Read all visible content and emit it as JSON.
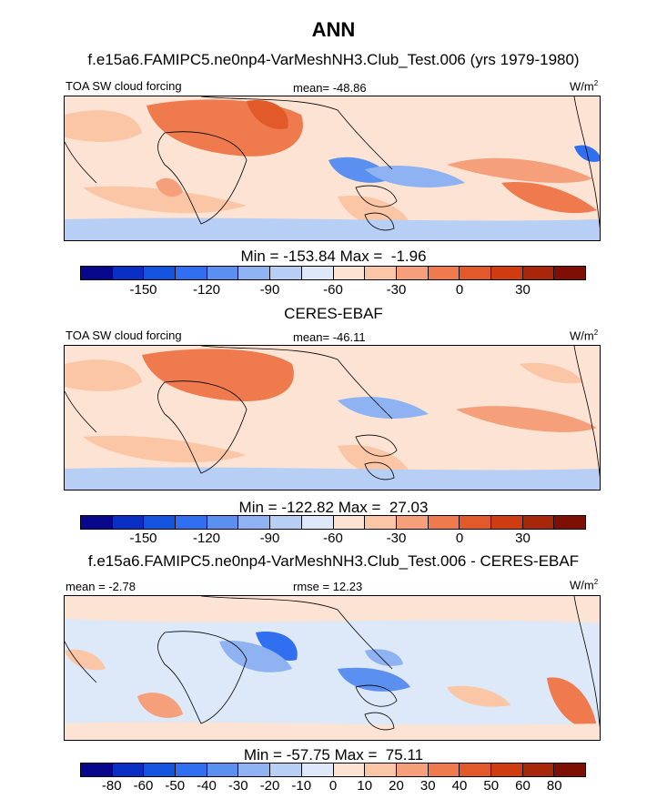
{
  "page_title": "ANN",
  "panels": [
    {
      "subtitle": "f.e15a6.FAMIPC5.ne0np4-VarMeshNH3.Club_Test.006 (yrs 1979-1980)",
      "left_label": "TOA SW cloud forcing",
      "center_label": "mean= -48.86",
      "unit_base": "W/m",
      "unit_sup": "2",
      "minmax": "Min = -153.84 Max =  -1.96",
      "ticks": [
        "-150",
        "-120",
        "-90",
        "-60",
        "-30",
        "0",
        "30"
      ]
    },
    {
      "subtitle": "CERES-EBAF",
      "left_label": "TOA SW cloud forcing",
      "center_label": "mean= -46.11",
      "unit_base": "W/m",
      "unit_sup": "2",
      "minmax": "Min = -122.82 Max =  27.03",
      "ticks": [
        "-150",
        "-120",
        "-90",
        "-60",
        "-30",
        "0",
        "30"
      ]
    },
    {
      "subtitle": "f.e15a6.FAMIPC5.ne0np4-VarMeshNH3.Club_Test.006 - CERES-EBAF",
      "left_label": "mean =  -2.78",
      "center_label": "rmse =  12.23",
      "unit_base": "W/m",
      "unit_sup": "2",
      "minmax": "Min = -57.75 Max =  75.11",
      "ticks": [
        "-80",
        "-60",
        "-50",
        "-40",
        "-30",
        "-20",
        "-10",
        "0",
        "10",
        "20",
        "30",
        "40",
        "50",
        "60",
        "80"
      ]
    }
  ],
  "colormap": [
    "#08088c",
    "#0a2fc4",
    "#1453e0",
    "#2f6ff0",
    "#5b8ff0",
    "#8eb2f2",
    "#b8cff5",
    "#dde8f8",
    "#fde3d3",
    "#fbc6a6",
    "#f5a07a",
    "#ee7a4e",
    "#e35a2a",
    "#d03c12",
    "#a8260a",
    "#7d0f05"
  ]
}
